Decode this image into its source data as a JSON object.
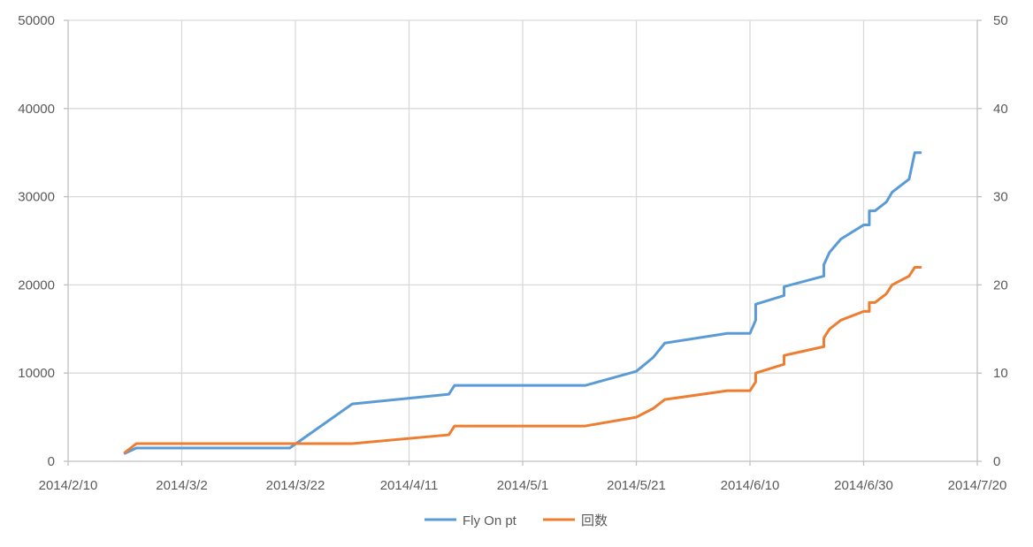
{
  "chart_data": {
    "type": "line",
    "x_type": "date",
    "xlim": [
      "2014-02-10",
      "2014-07-20"
    ],
    "x_ticks": [
      "2014-02-10",
      "2014-03-02",
      "2014-03-22",
      "2014-04-11",
      "2014-05-01",
      "2014-05-21",
      "2014-06-10",
      "2014-06-30",
      "2014-07-20"
    ],
    "x_tick_labels": [
      "2014/2/10",
      "2014/3/2",
      "2014/3/22",
      "2014/4/11",
      "2014/5/1",
      "2014/5/21",
      "2014/6/10",
      "2014/6/30",
      "2014/7/20"
    ],
    "y_left": {
      "lim": [
        0,
        50000
      ],
      "ticks": [
        0,
        10000,
        20000,
        30000,
        40000,
        50000
      ],
      "tick_labels": [
        "0",
        "10000",
        "20000",
        "30000",
        "40000",
        "50000"
      ]
    },
    "y_right": {
      "lim": [
        0,
        50
      ],
      "ticks": [
        0,
        10,
        20,
        30,
        40,
        50
      ],
      "tick_labels": [
        "0",
        "10",
        "20",
        "30",
        "40",
        "50"
      ]
    },
    "grid": "vertical and horizontal",
    "legend_position": "bottom",
    "series": [
      {
        "name": "Fly On pt",
        "axis": "left",
        "color": "#5b9bd5",
        "x": [
          "2014-02-20",
          "2014-02-22",
          "2014-03-21",
          "2014-04-01",
          "2014-04-18",
          "2014-04-19",
          "2014-05-12",
          "2014-05-21",
          "2014-05-24",
          "2014-05-26",
          "2014-06-06",
          "2014-06-10",
          "2014-06-11",
          "2014-06-11",
          "2014-06-16",
          "2014-06-16",
          "2014-06-23",
          "2014-06-23",
          "2014-06-24",
          "2014-06-26",
          "2014-06-30",
          "2014-07-01",
          "2014-07-01",
          "2014-07-02",
          "2014-07-04",
          "2014-07-05",
          "2014-07-08",
          "2014-07-09",
          "2014-07-10"
        ],
        "y": [
          900,
          1500,
          1500,
          6500,
          7600,
          8600,
          8600,
          10200,
          11800,
          13400,
          14500,
          14500,
          16000,
          17800,
          18800,
          19800,
          21000,
          22300,
          23700,
          25200,
          26800,
          26800,
          28400,
          28400,
          29400,
          30500,
          32000,
          35000,
          35000
        ]
      },
      {
        "name": "回数",
        "axis": "right",
        "color": "#ed7d31",
        "x": [
          "2014-02-20",
          "2014-02-22",
          "2014-04-01",
          "2014-04-18",
          "2014-04-19",
          "2014-05-12",
          "2014-05-21",
          "2014-05-24",
          "2014-05-26",
          "2014-06-06",
          "2014-06-10",
          "2014-06-11",
          "2014-06-11",
          "2014-06-16",
          "2014-06-16",
          "2014-06-23",
          "2014-06-23",
          "2014-06-24",
          "2014-06-26",
          "2014-06-30",
          "2014-07-01",
          "2014-07-01",
          "2014-07-02",
          "2014-07-04",
          "2014-07-05",
          "2014-07-08",
          "2014-07-09",
          "2014-07-10"
        ],
        "y": [
          1,
          2,
          2,
          3,
          4,
          4,
          5,
          6,
          7,
          8,
          8,
          9,
          10,
          11,
          12,
          13,
          14,
          15,
          16,
          17,
          17,
          18,
          18,
          19,
          20,
          21,
          22,
          22
        ]
      }
    ]
  }
}
